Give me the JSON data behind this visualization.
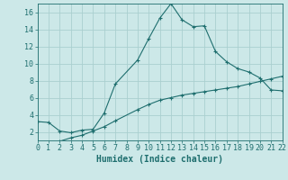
{
  "xlabel": "Humidex (Indice chaleur)",
  "bg_color": "#cce8e8",
  "line_color": "#1e6e6e",
  "grid_color": "#aacfcf",
  "line1_x": [
    0,
    1,
    2,
    3,
    4,
    5,
    6,
    7,
    9,
    10,
    11,
    12,
    13,
    14,
    15,
    16,
    17,
    18,
    19,
    20,
    21,
    22
  ],
  "line1_y": [
    3.2,
    3.1,
    2.1,
    1.9,
    2.2,
    2.3,
    4.2,
    7.6,
    10.4,
    12.9,
    15.3,
    17.0,
    15.1,
    14.3,
    14.4,
    11.4,
    10.2,
    9.4,
    9.0,
    8.3,
    6.9,
    6.8
  ],
  "line2_x": [
    0,
    1,
    2,
    3,
    4,
    5,
    6,
    7,
    9,
    10,
    11,
    12,
    13,
    14,
    15,
    16,
    17,
    18,
    19,
    20,
    21,
    22
  ],
  "line2_y": [
    0.0,
    0.5,
    0.9,
    1.3,
    1.6,
    2.1,
    2.6,
    3.3,
    4.6,
    5.2,
    5.7,
    6.0,
    6.3,
    6.5,
    6.7,
    6.9,
    7.1,
    7.3,
    7.6,
    7.9,
    8.2,
    8.5
  ],
  "xlim": [
    0,
    22
  ],
  "ylim": [
    1,
    17
  ],
  "xticks": [
    0,
    1,
    2,
    3,
    4,
    5,
    6,
    7,
    8,
    9,
    10,
    11,
    12,
    13,
    14,
    15,
    16,
    17,
    18,
    19,
    20,
    21,
    22
  ],
  "yticks": [
    2,
    4,
    6,
    8,
    10,
    12,
    14,
    16
  ],
  "xlabel_fontsize": 7,
  "tick_fontsize": 6
}
